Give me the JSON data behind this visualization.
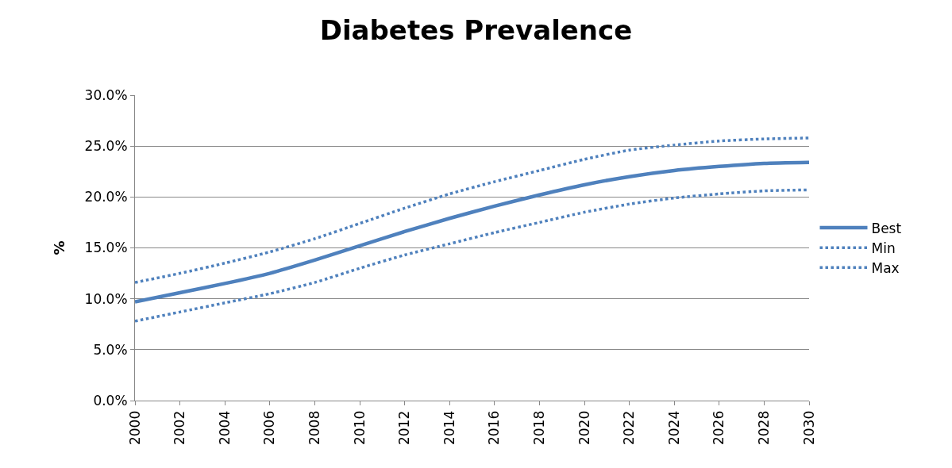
{
  "chart_data": {
    "type": "line",
    "title": "Diabetes Prevalence",
    "ylabel": "%",
    "x": [
      2000,
      2002,
      2004,
      2006,
      2008,
      2010,
      2012,
      2014,
      2016,
      2018,
      2020,
      2022,
      2024,
      2026,
      2028,
      2030
    ],
    "series": [
      {
        "name": "Best",
        "color": "#4f81bd",
        "line_style": "solid",
        "values": [
          9.7,
          10.6,
          11.5,
          12.5,
          13.8,
          15.2,
          16.6,
          17.9,
          19.1,
          20.2,
          21.2,
          22.0,
          22.6,
          23.0,
          23.3,
          23.4
        ]
      },
      {
        "name": "Min",
        "color": "#4f81bd",
        "line_style": "dotted",
        "values": [
          7.8,
          8.7,
          9.6,
          10.5,
          11.6,
          13.0,
          14.3,
          15.4,
          16.5,
          17.5,
          18.5,
          19.3,
          19.9,
          20.3,
          20.6,
          20.7
        ]
      },
      {
        "name": "Max",
        "color": "#4f81bd",
        "line_style": "dotted",
        "values": [
          11.6,
          12.5,
          13.5,
          14.6,
          15.9,
          17.4,
          18.9,
          20.3,
          21.5,
          22.6,
          23.7,
          24.6,
          25.1,
          25.5,
          25.7,
          25.8
        ]
      }
    ],
    "xlim": [
      2000,
      2030
    ],
    "xticks": [
      2000,
      2002,
      2004,
      2006,
      2008,
      2010,
      2012,
      2014,
      2016,
      2018,
      2020,
      2022,
      2024,
      2026,
      2028,
      2030
    ],
    "ylim": [
      0,
      30
    ],
    "yticks": [
      {
        "value": 0,
        "label": "0.0%"
      },
      {
        "value": 5,
        "label": "5.0%"
      },
      {
        "value": 10,
        "label": "10.0%"
      },
      {
        "value": 15,
        "label": "15.0%"
      },
      {
        "value": 20,
        "label": "20.0%"
      },
      {
        "value": 25,
        "label": "25.0%"
      },
      {
        "value": 30,
        "label": "30.0%"
      }
    ],
    "grid": "y",
    "legend": "right",
    "marker": "none"
  }
}
